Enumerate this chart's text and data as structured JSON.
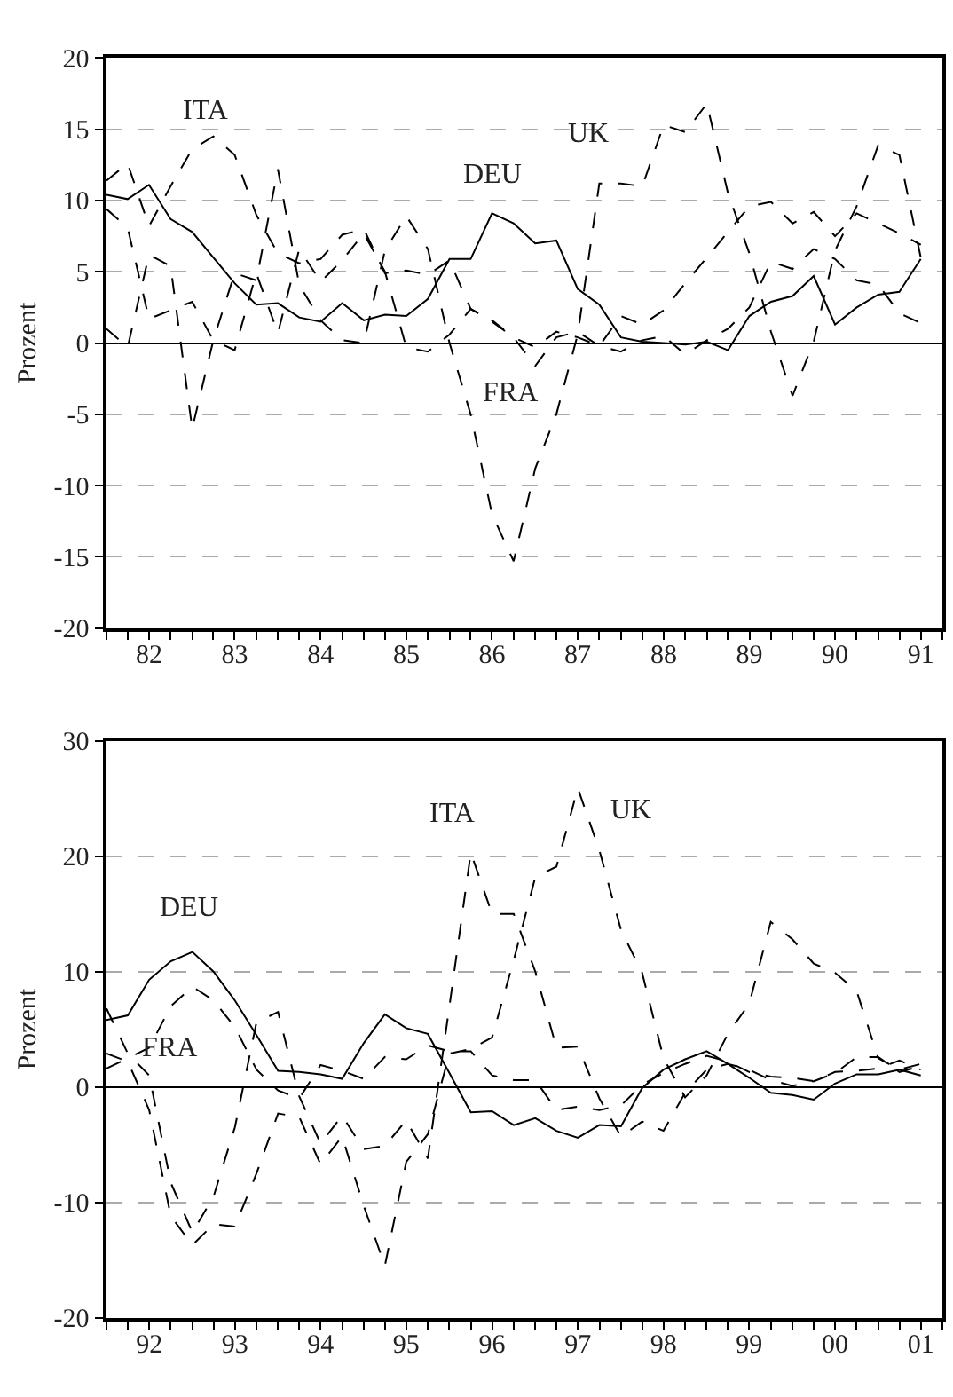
{
  "chart_data": [
    {
      "type": "line",
      "ylabel": "Prozent",
      "grid": "y",
      "legend": false,
      "marker": "none",
      "x": [
        "1982-01",
        "1982-04",
        "1982-07",
        "1982-10",
        "1983-01",
        "1983-04",
        "1983-07",
        "1983-10",
        "1984-01",
        "1984-04",
        "1984-07",
        "1984-10",
        "1985-01",
        "1985-04",
        "1985-07",
        "1985-10",
        "1986-01",
        "1986-04",
        "1986-07",
        "1986-10",
        "1987-01",
        "1987-04",
        "1987-07",
        "1987-10",
        "1988-01",
        "1988-04",
        "1988-07",
        "1988-10",
        "1989-01",
        "1989-04",
        "1989-07",
        "1989-10",
        "1990-01",
        "1990-04",
        "1990-07",
        "1990-10",
        "1991-01",
        "1991-04",
        "1991-07"
      ],
      "xlim": [
        "1982-01",
        "1991-10"
      ],
      "xticks": [
        {
          "value": "1982-07",
          "label": "82"
        },
        {
          "value": "1983-07",
          "label": "83"
        },
        {
          "value": "1984-07",
          "label": "84"
        },
        {
          "value": "1985-07",
          "label": "85"
        },
        {
          "value": "1986-07",
          "label": "86"
        },
        {
          "value": "1987-07",
          "label": "87"
        },
        {
          "value": "1988-07",
          "label": "88"
        },
        {
          "value": "1989-07",
          "label": "89"
        },
        {
          "value": "1990-07",
          "label": "90"
        },
        {
          "value": "1991-07",
          "label": "91"
        }
      ],
      "ylim": [
        -20,
        20
      ],
      "yticks": [
        -20,
        -15,
        -10,
        -5,
        0,
        5,
        10,
        15,
        20
      ],
      "series": [
        {
          "name": "DEU",
          "color": "#000000",
          "line_style": "solid",
          "values": [
            10.4,
            10.1,
            11.1,
            8.7,
            7.8,
            6.0,
            4.2,
            2.7,
            2.8,
            1.8,
            1.5,
            2.8,
            1.6,
            2.0,
            1.9,
            3.1,
            5.9,
            5.9,
            9.1,
            8.4,
            7.0,
            7.2,
            3.8,
            2.7,
            0.4,
            0.1,
            0.0,
            -0.1,
            0.1,
            -0.5,
            1.9,
            2.9,
            3.3,
            4.7,
            1.3,
            2.5,
            3.4,
            3.6,
            5.9
          ]
        },
        {
          "name": "ITA",
          "color": "#000000",
          "line_style": "dashed",
          "values": [
            11.4,
            12.6,
            8.2,
            11.0,
            13.6,
            14.5,
            13.2,
            9.0,
            6.3,
            5.6,
            5.9,
            7.6,
            8.0,
            4.9,
            5.1,
            4.8,
            5.8,
            2.4,
            1.5,
            0.4,
            -0.3,
            0.8,
            0.4,
            -0.2,
            1.9,
            1.3,
            2.3,
            4.2,
            6.0,
            7.8,
            9.6,
            9.9,
            8.4,
            9.2,
            7.5,
            9.1,
            8.4,
            7.7,
            6.9
          ]
        },
        {
          "name": "UK",
          "color": "#000000",
          "line_style": "dashed",
          "values": [
            1.0,
            -0.3,
            6.2,
            5.4,
            -6.0,
            0.2,
            4.9,
            4.4,
            12.2,
            4.1,
            1.6,
            0.2,
            0.0,
            6.5,
            8.9,
            6.6,
            0.0,
            -5.0,
            -12.0,
            -15.3,
            -8.8,
            -5.0,
            0.6,
            11.2,
            11.2,
            11.0,
            15.3,
            14.8,
            16.8,
            10.5,
            6.3,
            0.8,
            -3.7,
            0.1,
            6.5,
            9.6,
            13.9,
            13.2,
            6.0
          ]
        },
        {
          "name": "FRA",
          "color": "#000000",
          "line_style": "dashed",
          "values": [
            9.4,
            8.1,
            1.7,
            2.3,
            2.9,
            0.2,
            -0.5,
            4.9,
            0.7,
            6.6,
            4.3,
            5.8,
            7.7,
            5.0,
            -0.3,
            -0.6,
            0.6,
            2.4,
            1.6,
            0.4,
            -1.6,
            0.4,
            0.8,
            -0.2,
            -0.6,
            0.2,
            0.5,
            -0.8,
            0.2,
            1.0,
            2.5,
            5.7,
            5.2,
            6.6,
            5.9,
            4.4,
            4.1,
            2.1,
            1.4
          ]
        }
      ]
    },
    {
      "type": "line",
      "ylabel": "Prozent",
      "grid": "y",
      "legend": false,
      "marker": "none",
      "x": [
        "1992-01",
        "1992-04",
        "1992-07",
        "1992-10",
        "1993-01",
        "1993-04",
        "1993-07",
        "1993-10",
        "1994-01",
        "1994-04",
        "1994-07",
        "1994-10",
        "1995-01",
        "1995-04",
        "1995-07",
        "1995-10",
        "1996-01",
        "1996-04",
        "1996-07",
        "1996-10",
        "1997-01",
        "1997-04",
        "1997-07",
        "1997-10",
        "1998-01",
        "1998-04",
        "1998-07",
        "1998-10",
        "1999-01",
        "1999-04",
        "1999-07",
        "1999-10",
        "2000-01",
        "2000-04",
        "2000-07",
        "2000-10",
        "2001-01",
        "2001-04",
        "2001-07"
      ],
      "xlim": [
        "1992-01",
        "2001-10"
      ],
      "xticks": [
        {
          "value": "1992-07",
          "label": "92"
        },
        {
          "value": "1993-07",
          "label": "93"
        },
        {
          "value": "1994-07",
          "label": "94"
        },
        {
          "value": "1995-07",
          "label": "95"
        },
        {
          "value": "1996-07",
          "label": "96"
        },
        {
          "value": "1997-07",
          "label": "97"
        },
        {
          "value": "1998-07",
          "label": "98"
        },
        {
          "value": "1999-07",
          "label": "99"
        },
        {
          "value": "2000-07",
          "label": "00"
        },
        {
          "value": "2001-07",
          "label": "01"
        }
      ],
      "ylim": [
        -20,
        30
      ],
      "yticks": [
        -20,
        -10,
        0,
        10,
        20,
        30
      ],
      "series": [
        {
          "name": "DEU",
          "color": "#000000",
          "line_style": "solid",
          "values": [
            5.8,
            6.2,
            9.3,
            10.9,
            11.7,
            10.0,
            7.5,
            4.5,
            1.4,
            1.3,
            1.1,
            0.7,
            3.8,
            6.3,
            5.1,
            4.6,
            1.2,
            -2.2,
            -2.1,
            -3.3,
            -2.7,
            -3.8,
            -4.4,
            -3.3,
            -3.4,
            -0.1,
            1.5,
            2.4,
            3.1,
            2.0,
            0.8,
            -0.5,
            -0.7,
            -1.1,
            0.3,
            1.1,
            1.1,
            1.5,
            1.0
          ]
        },
        {
          "name": "FRA",
          "color": "#000000",
          "line_style": "dashed",
          "values": [
            1.6,
            2.5,
            3.4,
            7.0,
            8.7,
            7.5,
            5.2,
            1.5,
            -0.3,
            -1.0,
            1.9,
            1.4,
            0.7,
            2.6,
            2.4,
            3.6,
            3.1,
            3.1,
            1.0,
            0.6,
            0.6,
            -2.0,
            -1.7,
            -2.0,
            -1.6,
            0.2,
            1.2,
            2.0,
            2.7,
            2.2,
            1.3,
            0.9,
            0.8,
            0.5,
            1.3,
            1.4,
            1.6,
            2.3,
            1.5
          ]
        },
        {
          "name": "ITA",
          "color": "#000000",
          "line_style": "dashed",
          "values": [
            6.8,
            2.9,
            1.0,
            -8.3,
            -12.6,
            -9.5,
            -3.5,
            5.6,
            6.5,
            -0.8,
            -4.9,
            -2.5,
            -5.4,
            -5.1,
            -2.9,
            -6.2,
            7.0,
            20.3,
            15.0,
            15.0,
            10.0,
            3.4,
            3.5,
            -1.0,
            -4.3,
            -3.0,
            -3.8,
            -0.5,
            1.5,
            2.0,
            1.5,
            0.6,
            0.1,
            0.5,
            1.2,
            2.6,
            2.6,
            1.3,
            1.8
          ]
        },
        {
          "name": "UK",
          "color": "#000000",
          "line_style": "dashed",
          "values": [
            2.9,
            2.2,
            -2.0,
            -11.2,
            -13.7,
            -11.9,
            -12.1,
            -7.5,
            -2.3,
            -2.6,
            -6.7,
            -4.3,
            -10.3,
            -15.5,
            -6.5,
            -4.1,
            2.9,
            3.3,
            4.3,
            11.0,
            18.2,
            19.1,
            25.9,
            20.5,
            13.6,
            9.9,
            2.5,
            -0.9,
            1.0,
            4.6,
            7.2,
            14.3,
            12.8,
            10.7,
            9.9,
            8.3,
            2.5,
            1.5,
            2.0
          ]
        }
      ]
    }
  ]
}
